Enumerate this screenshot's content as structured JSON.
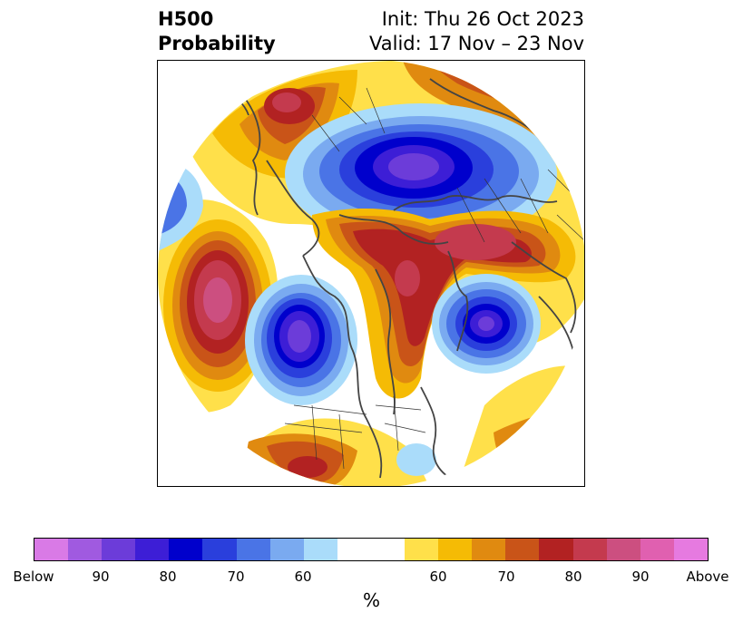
{
  "title": {
    "left_line1": "H500",
    "left_line2": "Probability",
    "right_line1": "Init: Thu 26 Oct 2023",
    "right_line2": "Valid: 17 Nov – 23 Nov"
  },
  "colorbar": {
    "colors": [
      "#d97ae6",
      "#a05ae0",
      "#6c3cd9",
      "#3d1ed6",
      "#0000cc",
      "#2a3fdc",
      "#4a74e6",
      "#7aaaf0",
      "#aadcfa",
      "#ffffff",
      "#ffe04a",
      "#f5bb05",
      "#e08a10",
      "#c95418",
      "#b22222",
      "#c43a4e",
      "#cc4f80",
      "#e060b0",
      "#e67ae0"
    ],
    "tick_labels": [
      "Below",
      "90",
      "80",
      "70",
      "60",
      "60",
      "70",
      "80",
      "90",
      "Above"
    ],
    "unit": "%"
  },
  "map": {
    "projection": "north-polar-stereographic",
    "anomalies": [
      {
        "region": "North Pacific",
        "sign": "above",
        "max_probability": "90"
      },
      {
        "region": "Western North America / Gulf of Alaska",
        "sign": "below",
        "max_probability": "80"
      },
      {
        "region": "Canadian Arctic / Greenland",
        "sign": "above",
        "max_probability": "80"
      },
      {
        "region": "Arctic Ocean / Siberia",
        "sign": "below",
        "max_probability": "80"
      },
      {
        "region": "North Atlantic / Western Europe",
        "sign": "below",
        "max_probability": "80"
      },
      {
        "region": "Scandinavia / Northern Russia",
        "sign": "above",
        "max_probability": "80"
      },
      {
        "region": "East Asia",
        "sign": "above",
        "max_probability": "80"
      }
    ]
  }
}
